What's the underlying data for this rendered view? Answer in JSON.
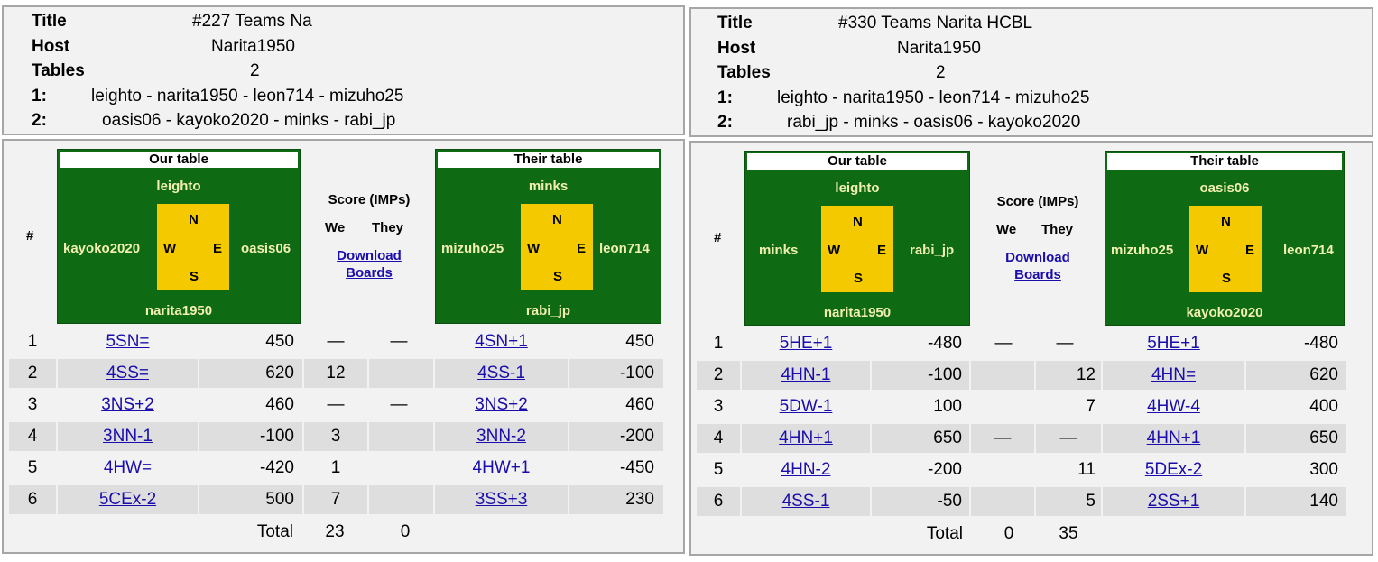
{
  "left": {
    "info": {
      "title_label": "Title",
      "title": "#227 Teams Na",
      "host_label": "Host",
      "host": "Narita1950",
      "tables_label": "Tables",
      "tables": "2",
      "t1_label": "1:",
      "t1": "leighto - narita1950 - leon714 - mizuho25",
      "t2_label": "2:",
      "t2": "oasis06 - kayoko2020 - minks - rabi_jp"
    },
    "hash": "#",
    "our": {
      "header": "Our table",
      "north": "leighto",
      "south": "narita1950",
      "west": "kayoko2020",
      "east": "oasis06"
    },
    "their": {
      "header": "Their table",
      "north": "minks",
      "south": "rabi_jp",
      "west": "mizuho25",
      "east": "leon714"
    },
    "score": {
      "header": "Score (IMPs)",
      "we": "We",
      "they": "They",
      "download1": "Download",
      "download2": "Boards"
    },
    "boards": [
      {
        "n": "1",
        "c1": "5SN=",
        "s1": "450",
        "we": "—",
        "they": "—",
        "c2": "4SN+1",
        "s2": "450"
      },
      {
        "n": "2",
        "c1": "4SS=",
        "s1": "620",
        "we": "12",
        "they": "",
        "c2": "4SS-1",
        "s2": "-100"
      },
      {
        "n": "3",
        "c1": "3NS+2",
        "s1": "460",
        "we": "—",
        "they": "—",
        "c2": "3NS+2",
        "s2": "460"
      },
      {
        "n": "4",
        "c1": "3NN-1",
        "s1": "-100",
        "we": "3",
        "they": "",
        "c2": "3NN-2",
        "s2": "-200"
      },
      {
        "n": "5",
        "c1": "4HW=",
        "s1": "-420",
        "we": "1",
        "they": "",
        "c2": "4HW+1",
        "s2": "-450"
      },
      {
        "n": "6",
        "c1": "5CEx-2",
        "s1": "500",
        "we": "7",
        "they": "",
        "c2": "3SS+3",
        "s2": "230"
      }
    ],
    "total": {
      "label": "Total",
      "we": "23",
      "they": "0"
    }
  },
  "right": {
    "info": {
      "title_label": "Title",
      "title": "#330 Teams Narita HCBL",
      "host_label": "Host",
      "host": "Narita1950",
      "tables_label": "Tables",
      "tables": "2",
      "t1_label": "1:",
      "t1": "leighto - narita1950 - leon714 - mizuho25",
      "t2_label": "2:",
      "t2": "rabi_jp - minks - oasis06 - kayoko2020"
    },
    "hash": "#",
    "our": {
      "header": "Our table",
      "north": "leighto",
      "south": "narita1950",
      "west": "minks",
      "east": "rabi_jp"
    },
    "their": {
      "header": "Their table",
      "north": "oasis06",
      "south": "kayoko2020",
      "west": "mizuho25",
      "east": "leon714"
    },
    "score": {
      "header": "Score (IMPs)",
      "we": "We",
      "they": "They",
      "download1": "Download",
      "download2": "Boards"
    },
    "boards": [
      {
        "n": "1",
        "c1": "5HE+1",
        "s1": "-480",
        "we": "—",
        "they": "—",
        "c2": "5HE+1",
        "s2": "-480"
      },
      {
        "n": "2",
        "c1": "4HN-1",
        "s1": "-100",
        "we": "",
        "they": "12",
        "c2": "4HN=",
        "s2": "620"
      },
      {
        "n": "3",
        "c1": "5DW-1",
        "s1": "100",
        "we": "",
        "they": "7",
        "c2": "4HW-4",
        "s2": "400"
      },
      {
        "n": "4",
        "c1": "4HN+1",
        "s1": "650",
        "we": "—",
        "they": "—",
        "c2": "4HN+1",
        "s2": "650"
      },
      {
        "n": "5",
        "c1": "4HN-2",
        "s1": "-200",
        "we": "",
        "they": "11",
        "c2": "5DEx-2",
        "s2": "300"
      },
      {
        "n": "6",
        "c1": "4SS-1",
        "s1": "-50",
        "we": "",
        "they": "5",
        "c2": "2SS+1",
        "s2": "140"
      }
    ],
    "total": {
      "label": "Total",
      "we": "0",
      "they": "35"
    }
  },
  "compass": {
    "n": "N",
    "s": "S",
    "w": "W",
    "e": "E"
  }
}
